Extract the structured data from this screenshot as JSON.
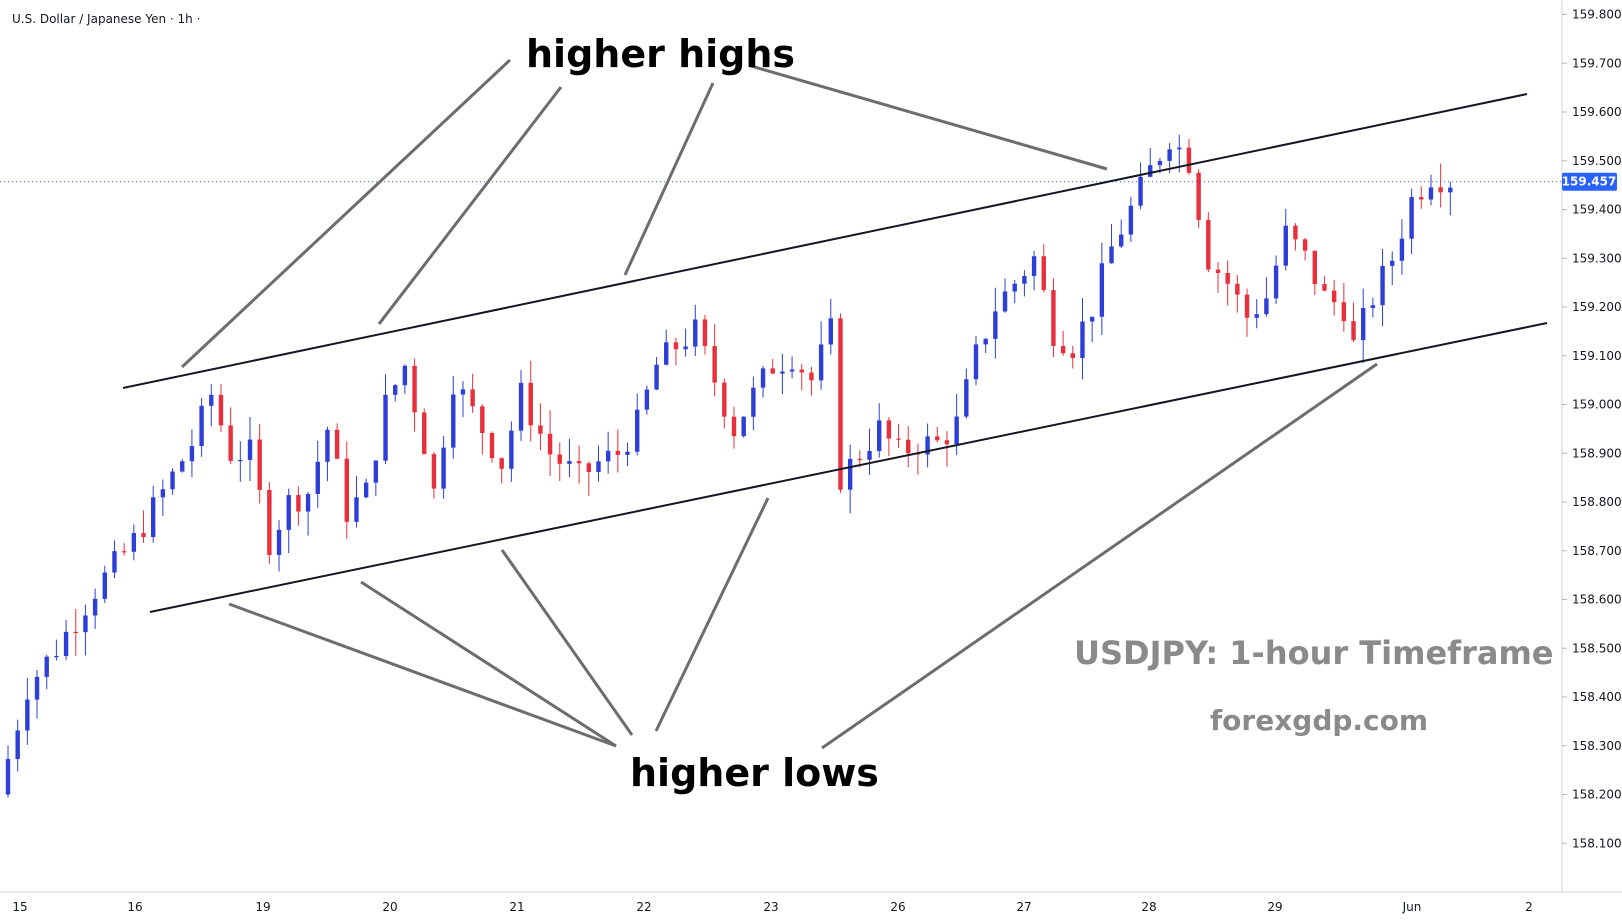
{
  "header": {
    "title": "U.S. Dollar / Japanese Yen · 1h ·"
  },
  "annotations": {
    "higher_highs": "higher highs",
    "higher_lows": "higher lows",
    "title": "USDJPY: 1-hour Timeframe",
    "site": "forexgdp.com"
  },
  "colors": {
    "up": "#2d3fd6",
    "down": "#e8303c",
    "line": "#131722",
    "pointer": "#6d6d6d",
    "price_tag": "#2962ff"
  },
  "chart_data": {
    "type": "candlestick",
    "symbol": "USDJPY",
    "timeframe": "1h",
    "x_ticks": [
      "15",
      "16",
      "19",
      "20",
      "21",
      "22",
      "23",
      "26",
      "27",
      "28",
      "29",
      "Jun",
      "2"
    ],
    "y_ticks": [
      "158.100",
      "158.200",
      "158.300",
      "158.400",
      "158.500",
      "158.600",
      "158.700",
      "158.800",
      "158.900",
      "159.000",
      "159.100",
      "159.200",
      "159.300",
      "159.400",
      "159.500",
      "159.600",
      "159.700",
      "159.800"
    ],
    "ylim": [
      158.0,
      159.83
    ],
    "last_price": "159.457",
    "path_points": [
      [
        0.0,
        158.2
      ],
      [
        3,
        158.42
      ],
      [
        6,
        158.5
      ],
      [
        10,
        158.62
      ],
      [
        14,
        158.72
      ],
      [
        17,
        158.82
      ],
      [
        20,
        158.92
      ],
      [
        22,
        159.02
      ],
      [
        24,
        158.9
      ],
      [
        26,
        158.9
      ],
      [
        28,
        158.72
      ],
      [
        30,
        158.8
      ],
      [
        32,
        158.82
      ],
      [
        34,
        158.95
      ],
      [
        36,
        158.78
      ],
      [
        38,
        158.82
      ],
      [
        40,
        159.0
      ],
      [
        42,
        159.08
      ],
      [
        44,
        158.92
      ],
      [
        45,
        158.82
      ],
      [
        47,
        159.05
      ],
      [
        50,
        158.95
      ],
      [
        52,
        158.88
      ],
      [
        54,
        159.02
      ],
      [
        57,
        158.9
      ],
      [
        60,
        158.85
      ],
      [
        62,
        158.88
      ],
      [
        64,
        158.9
      ],
      [
        66,
        158.96
      ],
      [
        68,
        159.08
      ],
      [
        70,
        159.12
      ],
      [
        72,
        159.15
      ],
      [
        74,
        159.05
      ],
      [
        76,
        158.95
      ],
      [
        78,
        159.02
      ],
      [
        80,
        159.08
      ],
      [
        82,
        159.1
      ],
      [
        84,
        159.05
      ],
      [
        86,
        159.15
      ],
      [
        87,
        158.85
      ],
      [
        89,
        158.9
      ],
      [
        91,
        158.95
      ],
      [
        93,
        158.9
      ],
      [
        95,
        158.92
      ],
      [
        97,
        158.92
      ],
      [
        99,
        158.96
      ],
      [
        101,
        159.1
      ],
      [
        103,
        159.2
      ],
      [
        105,
        159.25
      ],
      [
        107,
        159.3
      ],
      [
        109,
        159.15
      ],
      [
        111,
        159.12
      ],
      [
        113,
        159.2
      ],
      [
        115,
        159.32
      ],
      [
        117,
        159.4
      ],
      [
        119,
        159.48
      ],
      [
        121,
        159.55
      ],
      [
        123,
        159.5
      ],
      [
        125,
        159.3
      ],
      [
        127,
        159.25
      ],
      [
        129,
        159.18
      ],
      [
        131,
        159.22
      ],
      [
        133,
        159.35
      ],
      [
        135,
        159.3
      ],
      [
        137,
        159.22
      ],
      [
        139,
        159.2
      ],
      [
        140,
        159.12
      ],
      [
        142,
        159.22
      ],
      [
        144,
        159.3
      ],
      [
        146,
        159.42
      ],
      [
        148,
        159.47
      ],
      [
        150,
        159.46
      ]
    ],
    "channel": {
      "upper": [
        [
          8.0,
          159.05
        ],
        [
          120.0,
          159.65
        ]
      ],
      "lower": [
        [
          11.0,
          158.58
        ],
        [
          120.0,
          159.18
        ]
      ]
    }
  }
}
